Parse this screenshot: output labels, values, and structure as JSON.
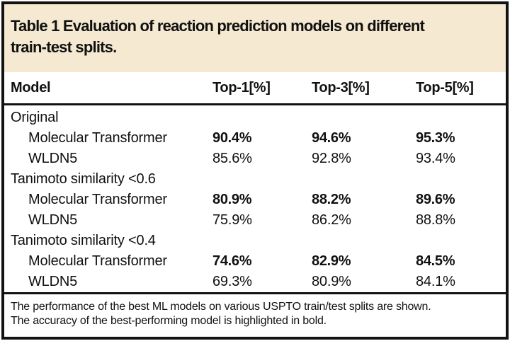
{
  "title": {
    "lines": [
      "Table 1 Evaluation of reaction prediction models on different",
      "train-test splits."
    ]
  },
  "table": {
    "columns": [
      "Model",
      "Top-1[%]",
      "Top-3[%]",
      "Top-5[%]"
    ],
    "groups": [
      {
        "label": "Original",
        "rows": [
          {
            "model": "Molecular Transformer",
            "top1": "90.4%",
            "top3": "94.6%",
            "top5": "95.3%",
            "best": true
          },
          {
            "model": "WLDN5",
            "top1": "85.6%",
            "top3": "92.8%",
            "top5": "93.4%",
            "best": false
          }
        ]
      },
      {
        "label": "Tanimoto similarity <0.6",
        "rows": [
          {
            "model": "Molecular Transformer",
            "top1": "80.9%",
            "top3": "88.2%",
            "top5": "89.6%",
            "best": true
          },
          {
            "model": "WLDN5",
            "top1": "75.9%",
            "top3": "86.2%",
            "top5": "88.8%",
            "best": false
          }
        ]
      },
      {
        "label": "Tanimoto similarity <0.4",
        "rows": [
          {
            "model": "Molecular Transformer",
            "top1": "74.6%",
            "top3": "82.9%",
            "top5": "84.5%",
            "best": true
          },
          {
            "model": "WLDN5",
            "top1": "69.3%",
            "top3": "80.9%",
            "top5": "84.1%",
            "best": false
          }
        ]
      }
    ]
  },
  "footnote": {
    "lines": [
      "The performance of the best ML models on various USPTO train/test splits are shown.",
      "The accuracy of the best-performing model is highlighted in bold."
    ]
  },
  "colors": {
    "header_bg": "#f5e9d1",
    "border": "#121212",
    "text": "#111111"
  }
}
